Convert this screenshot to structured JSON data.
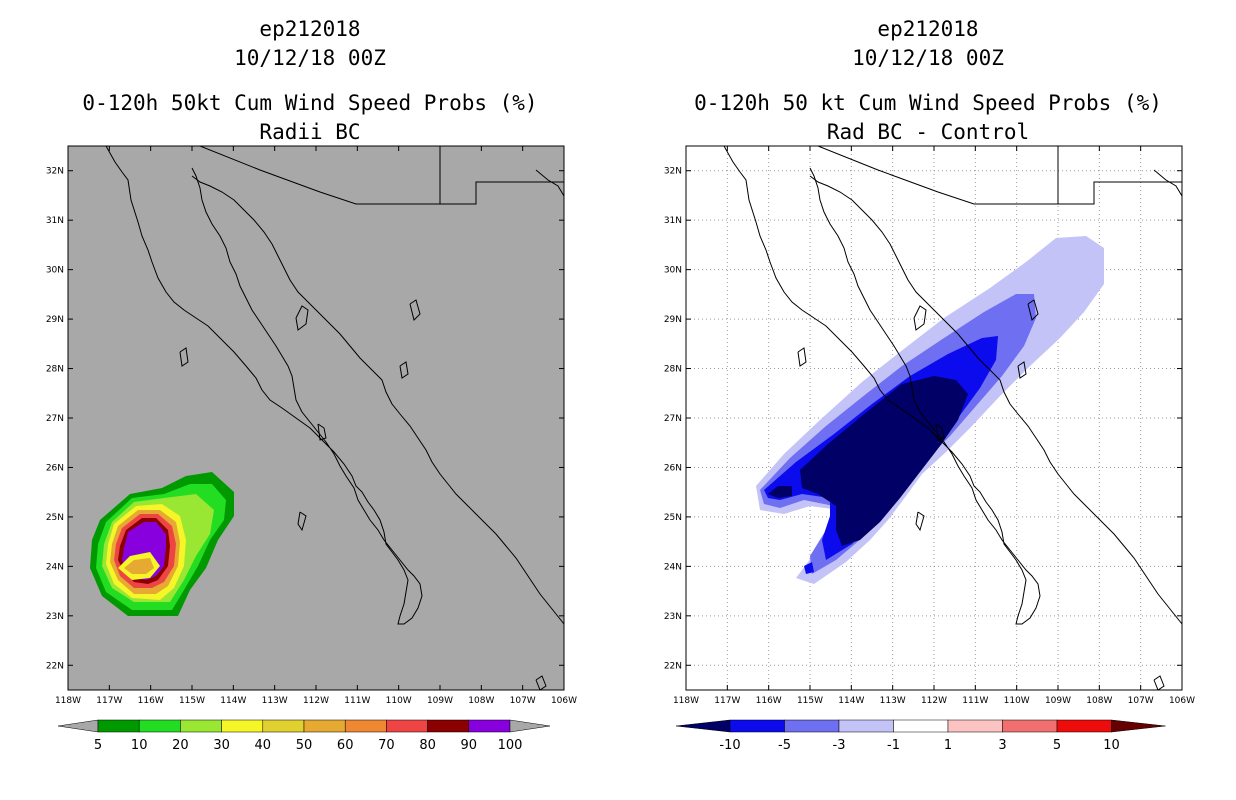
{
  "left_panel": {
    "title_line1": "ep212018",
    "title_line2": "10/12/18 00Z",
    "title_line3": "0-120h 50kt Cum Wind Speed Probs (%)",
    "title_line4": "Radii BC",
    "colorbar": {
      "labels": [
        "5",
        "10",
        "20",
        "30",
        "40",
        "50",
        "60",
        "70",
        "80",
        "90",
        "100"
      ],
      "colors": [
        "#009900",
        "#22dd22",
        "#99e633",
        "#f5f527",
        "#e0d030",
        "#e6aa33",
        "#ee8833",
        "#ee4444",
        "#8b0000",
        "#8800dd"
      ]
    },
    "background_color": "#a8a8a8"
  },
  "right_panel": {
    "title_line1": "ep212018",
    "title_line2": "10/12/18 00Z",
    "title_line3": "0-120h 50 kt Cum Wind Speed Probs (%)",
    "title_line4": "Rad BC - Control",
    "colorbar": {
      "labels": [
        "-10",
        "-5",
        "-3",
        "-1",
        "1",
        "3",
        "5",
        "10"
      ],
      "colors": [
        "#000066",
        "#0b0bee",
        "#6f6ff2",
        "#c3c3f8",
        "#ffffff",
        "#fcc3c3",
        "#f26f6f",
        "#ee0b0b",
        "#660000"
      ]
    }
  },
  "axes": {
    "lat_labels": [
      "32N",
      "31N",
      "30N",
      "29N",
      "28N",
      "27N",
      "26N",
      "25N",
      "24N",
      "23N",
      "22N"
    ],
    "lon_labels": [
      "118W",
      "117W",
      "116W",
      "115W",
      "114W",
      "113W",
      "112W",
      "111W",
      "110W",
      "109W",
      "108W",
      "107W",
      "106W"
    ],
    "lat_values": [
      32,
      31,
      30,
      29,
      28,
      27,
      26,
      25,
      24,
      23,
      22
    ],
    "lon_values": [
      118,
      117,
      116,
      115,
      114,
      113,
      112,
      111,
      110,
      109,
      108,
      107,
      106
    ]
  }
}
